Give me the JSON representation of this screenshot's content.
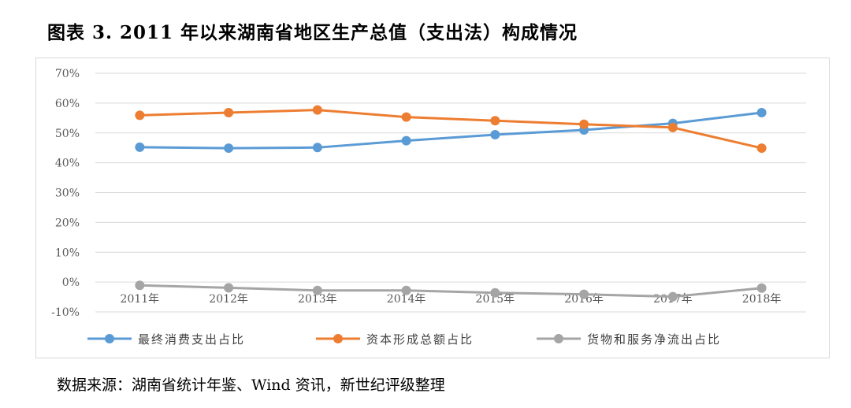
{
  "title": "图表 3.   2011 年以来湖南省地区生产总值（支出法）构成情况",
  "source": "数据来源：湖南省统计年鉴、Wind 资讯，新世纪评级整理",
  "chart_data": {
    "type": "line",
    "x": [
      "2011年",
      "2012年",
      "2013年",
      "2014年",
      "2015年",
      "2016年",
      "2017年",
      "2018年"
    ],
    "y_ticks": [
      "70%",
      "60%",
      "50%",
      "40%",
      "30%",
      "20%",
      "10%",
      "0%",
      "-10%"
    ],
    "ylim": [
      -10,
      70
    ],
    "y_unit": "%",
    "grid": true,
    "legend_position": "bottom",
    "series": [
      {
        "name": "最终消费支出占比",
        "color": "#5b9bd5",
        "values": [
          45.2,
          44.9,
          45.1,
          47.4,
          49.4,
          51.0,
          53.2,
          56.8
        ]
      },
      {
        "name": "资本形成总额占比",
        "color": "#ed7d31",
        "values": [
          55.9,
          56.8,
          57.7,
          55.3,
          54.1,
          52.9,
          51.8,
          44.9
        ]
      },
      {
        "name": "货物和服务净流出占比",
        "color": "#a5a5a5",
        "values": [
          -1.1,
          -1.9,
          -2.8,
          -2.8,
          -3.6,
          -4.1,
          -4.9,
          -2.0
        ]
      }
    ]
  }
}
